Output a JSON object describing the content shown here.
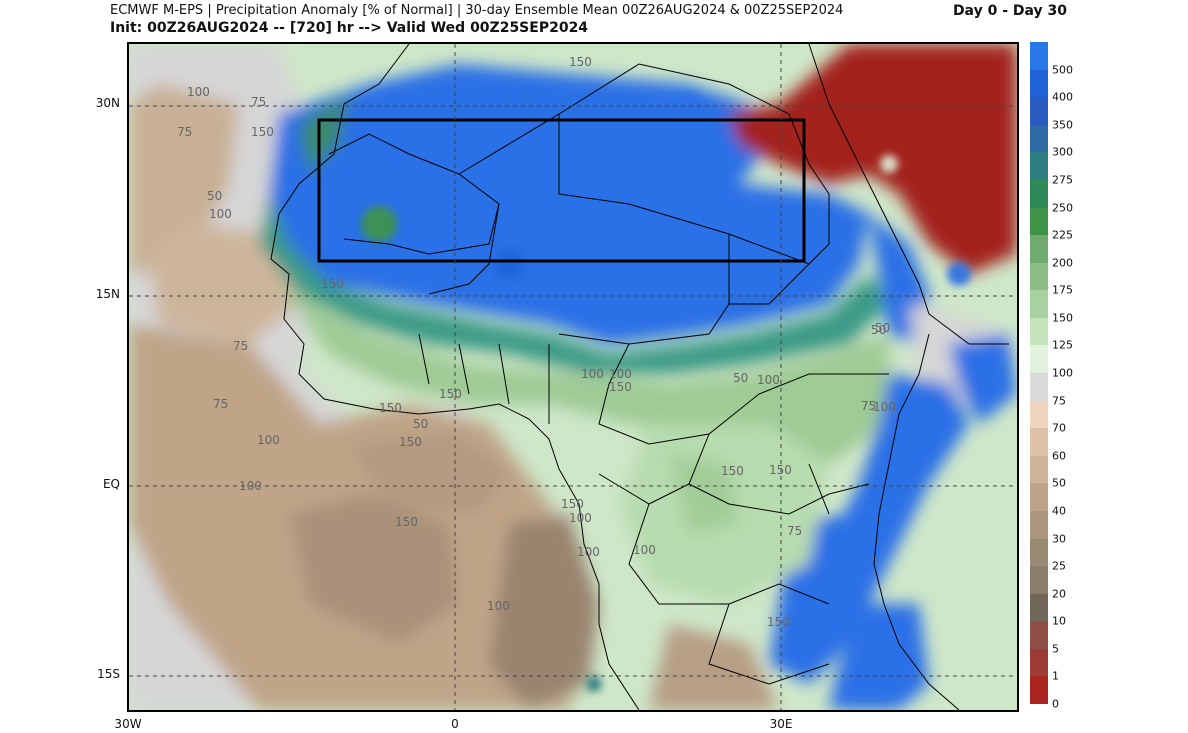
{
  "header": {
    "line1": "ECMWF M-EPS | Precipitation Anomaly [% of Normal] | 30-day Ensemble Mean 00Z26AUG2024 & 00Z25SEP2024",
    "line2": "Init: 00Z26AUG2024 -- [720] hr --> Valid Wed 00Z25SEP2024",
    "range": "Day 0 - Day 30"
  },
  "axes": {
    "lat_labels": [
      "30N",
      "15N",
      "EQ",
      "15S"
    ],
    "lon_labels": [
      "30W",
      "0",
      "30E"
    ]
  },
  "map_labels": [
    "150",
    "100",
    "75",
    "150",
    "75",
    "50",
    "100",
    "150",
    "75",
    "100",
    "75",
    "100",
    "50",
    "150",
    "100",
    "50",
    "50",
    "75",
    "50",
    "100",
    "150",
    "100",
    "150",
    "150",
    "100",
    "150",
    "100",
    "150",
    "100",
    "150",
    "100",
    "100",
    "150",
    "75",
    "150"
  ],
  "colorbar": {
    "labels": [
      "500",
      "400",
      "350",
      "300",
      "275",
      "250",
      "225",
      "200",
      "175",
      "150",
      "125",
      "100",
      "75",
      "70",
      "60",
      "50",
      "40",
      "30",
      "25",
      "20",
      "10",
      "5",
      "1",
      "0"
    ],
    "colors": [
      "#2878e8",
      "#1f64d8",
      "#2a5bbf",
      "#2f6aa6",
      "#2e7e80",
      "#2f8a5a",
      "#3f9447",
      "#6fab6c",
      "#8cbf86",
      "#a7d1a0",
      "#c3e3bd",
      "#e0f2dc",
      "#dadada",
      "#f0d6bf",
      "#dec3a8",
      "#cfb59b",
      "#bda58b",
      "#ab977e",
      "#998a74",
      "#8a7d6a",
      "#716758",
      "#8e4f47",
      "#9c3c35",
      "#a8261f"
    ]
  },
  "colors": {
    "wet": "#2a6fe6",
    "dry_red": "#a3221d",
    "green_light": "#cfe7c9",
    "tan": "#c7ad92",
    "gray": "#d6d6d6"
  }
}
